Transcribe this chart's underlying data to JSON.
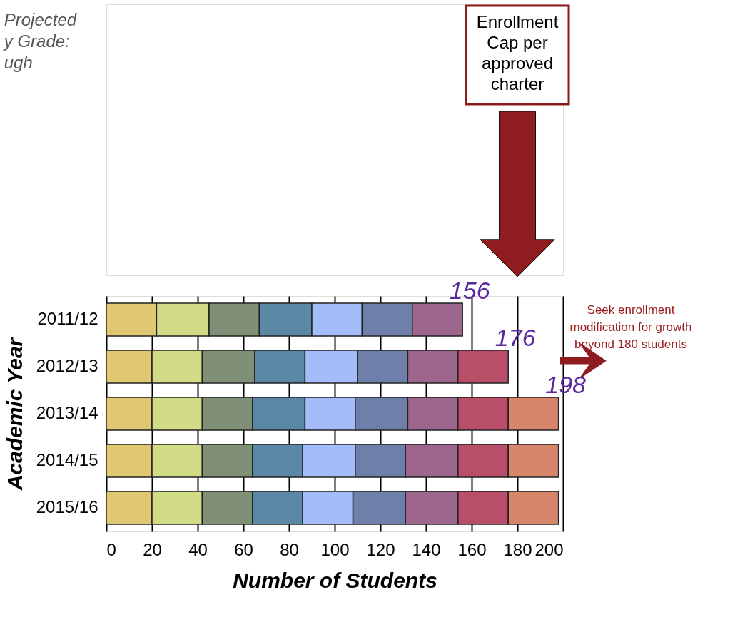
{
  "chart_data": {
    "type": "bar",
    "orientation": "horizontal",
    "stacked": true,
    "title": "Projected\ny Grade:\nugh",
    "xlabel": "Number of Students",
    "ylabel": "Academic Year",
    "categories": [
      "2011/12",
      "2012/13",
      "2013/14",
      "2014/15",
      "2015/16"
    ],
    "series": [
      {
        "color": "#e0c872",
        "values": [
          22,
          20,
          20,
          20,
          20
        ]
      },
      {
        "color": "#d2db86",
        "values": [
          23,
          22,
          22,
          22,
          22
        ]
      },
      {
        "color": "#7f9076",
        "values": [
          22,
          23,
          22,
          22,
          22
        ]
      },
      {
        "color": "#5b88a4",
        "values": [
          23,
          22,
          23,
          22,
          22
        ]
      },
      {
        "color": "#a4bdfa",
        "values": [
          22,
          23,
          22,
          23,
          22
        ]
      },
      {
        "color": "#6e80aa",
        "values": [
          22,
          22,
          23,
          22,
          23
        ]
      },
      {
        "color": "#9d668c",
        "values": [
          22,
          22,
          22,
          23,
          23
        ]
      },
      {
        "color": "#b94e68",
        "values": [
          null,
          22,
          22,
          22,
          22
        ]
      },
      {
        "color": "#d7866c",
        "values": [
          null,
          null,
          22,
          22,
          22
        ]
      }
    ],
    "totals": [
      "156",
      "176",
      "198",
      null,
      null
    ],
    "xlim": [
      0,
      200
    ],
    "xticks": [
      0,
      20,
      40,
      60,
      80,
      100,
      120,
      140,
      160,
      180,
      200
    ],
    "grid": "x",
    "annotations": [
      "Enrollment\nCap per\napproved\ncharter",
      "Seek enrollment\nmodification for growth\nbeyond 180 students"
    ]
  }
}
